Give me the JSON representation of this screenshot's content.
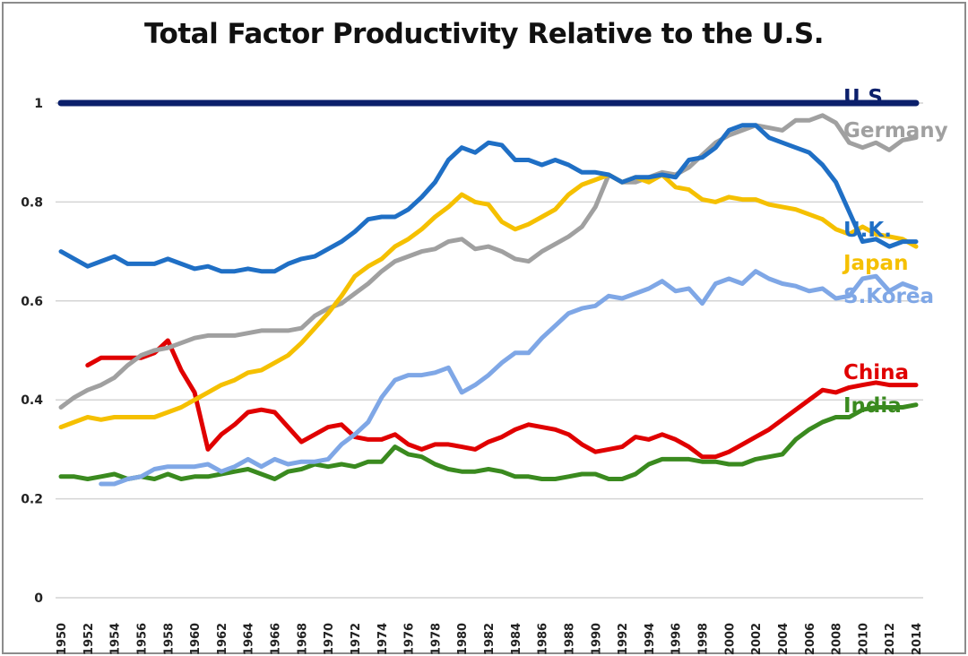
{
  "chart_data": {
    "type": "line",
    "title": "Total Factor Productivity Relative to the U.S.",
    "xlabel": "",
    "ylabel": "",
    "ylim": [
      0,
      1
    ],
    "xlim": [
      1950,
      2014
    ],
    "grid": true,
    "legend_position": "right (inline labels)",
    "y_ticks": [
      "0",
      "0.2",
      "0.4",
      "0.6",
      "0.8",
      "1"
    ],
    "y_tick_values": [
      0,
      0.2,
      0.4,
      0.6,
      0.8,
      1
    ],
    "x_tick_labels": [
      "1950",
      "1952",
      "1954",
      "1956",
      "1958",
      "1960",
      "1962",
      "1964",
      "1966",
      "1968",
      "1970",
      "1972",
      "1974",
      "1976",
      "1978",
      "1980",
      "1982",
      "1984",
      "1986",
      "1988",
      "1990",
      "1992",
      "1994",
      "1996",
      "1998",
      "2000",
      "2002",
      "2004",
      "2006",
      "2008",
      "2010",
      "2012",
      "2014"
    ],
    "x": [
      1950,
      1951,
      1952,
      1953,
      1954,
      1955,
      1956,
      1957,
      1958,
      1959,
      1960,
      1961,
      1962,
      1963,
      1964,
      1965,
      1966,
      1967,
      1968,
      1969,
      1970,
      1971,
      1972,
      1973,
      1974,
      1975,
      1976,
      1977,
      1978,
      1979,
      1980,
      1981,
      1982,
      1983,
      1984,
      1985,
      1986,
      1987,
      1988,
      1989,
      1990,
      1991,
      1992,
      1993,
      1994,
      1995,
      1996,
      1997,
      1998,
      1999,
      2000,
      2001,
      2002,
      2003,
      2004,
      2005,
      2006,
      2007,
      2008,
      2009,
      2010,
      2011,
      2012,
      2013,
      2014
    ],
    "series": [
      {
        "name": "U.S.",
        "color": "#0b1f6b",
        "values": [
          1,
          1,
          1,
          1,
          1,
          1,
          1,
          1,
          1,
          1,
          1,
          1,
          1,
          1,
          1,
          1,
          1,
          1,
          1,
          1,
          1,
          1,
          1,
          1,
          1,
          1,
          1,
          1,
          1,
          1,
          1,
          1,
          1,
          1,
          1,
          1,
          1,
          1,
          1,
          1,
          1,
          1,
          1,
          1,
          1,
          1,
          1,
          1,
          1,
          1,
          1,
          1,
          1,
          1,
          1,
          1,
          1,
          1,
          1,
          1,
          1,
          1,
          1,
          1,
          1
        ]
      },
      {
        "name": "Germany",
        "color": "#a0a0a0",
        "values": [
          0.385,
          0.405,
          0.42,
          0.43,
          0.445,
          0.47,
          0.49,
          0.5,
          0.505,
          0.515,
          0.525,
          0.53,
          0.53,
          0.53,
          0.535,
          0.54,
          0.54,
          0.54,
          0.545,
          0.57,
          0.585,
          0.595,
          0.615,
          0.635,
          0.66,
          0.68,
          0.69,
          0.7,
          0.705,
          0.72,
          0.725,
          0.705,
          0.71,
          0.7,
          0.685,
          0.68,
          0.7,
          0.715,
          0.73,
          0.75,
          0.79,
          0.855,
          0.84,
          0.84,
          0.85,
          0.86,
          0.855,
          0.87,
          0.895,
          0.92,
          0.935,
          0.945,
          0.955,
          0.95,
          0.945,
          0.965,
          0.965,
          0.975,
          0.96,
          0.92,
          0.91,
          0.92,
          0.905,
          0.925,
          0.93
        ]
      },
      {
        "name": "U.K.",
        "color": "#1f6fc5",
        "values": [
          0.7,
          0.685,
          0.67,
          0.68,
          0.69,
          0.675,
          0.675,
          0.675,
          0.685,
          0.675,
          0.665,
          0.67,
          0.66,
          0.66,
          0.665,
          0.66,
          0.66,
          0.675,
          0.685,
          0.69,
          0.705,
          0.72,
          0.74,
          0.765,
          0.77,
          0.77,
          0.785,
          0.81,
          0.84,
          0.885,
          0.91,
          0.9,
          0.92,
          0.915,
          0.885,
          0.885,
          0.875,
          0.885,
          0.875,
          0.86,
          0.86,
          0.855,
          0.84,
          0.85,
          0.85,
          0.855,
          0.85,
          0.885,
          0.89,
          0.91,
          0.945,
          0.955,
          0.955,
          0.93,
          0.92,
          0.91,
          0.9,
          0.875,
          0.84,
          0.78,
          0.72,
          0.725,
          0.71,
          0.72,
          0.72
        ]
      },
      {
        "name": "Japan",
        "color": "#f5c000",
        "values": [
          0.345,
          0.355,
          0.365,
          0.36,
          0.365,
          0.365,
          0.365,
          0.365,
          0.375,
          0.385,
          0.4,
          0.415,
          0.43,
          0.44,
          0.455,
          0.46,
          0.475,
          0.49,
          0.515,
          0.545,
          0.575,
          0.61,
          0.65,
          0.67,
          0.685,
          0.71,
          0.725,
          0.745,
          0.77,
          0.79,
          0.815,
          0.8,
          0.795,
          0.76,
          0.745,
          0.755,
          0.77,
          0.785,
          0.815,
          0.835,
          0.845,
          0.855,
          0.84,
          0.85,
          0.84,
          0.855,
          0.83,
          0.825,
          0.805,
          0.8,
          0.81,
          0.805,
          0.805,
          0.795,
          0.79,
          0.785,
          0.775,
          0.765,
          0.745,
          0.735,
          0.75,
          0.735,
          0.73,
          0.725,
          0.71
        ]
      },
      {
        "name": "S.Korea",
        "color": "#7fa7e6",
        "values": [
          null,
          null,
          null,
          0.23,
          0.23,
          0.24,
          0.245,
          0.26,
          0.265,
          0.265,
          0.265,
          0.27,
          0.255,
          0.265,
          0.28,
          0.265,
          0.28,
          0.27,
          0.275,
          0.275,
          0.28,
          0.31,
          0.33,
          0.355,
          0.405,
          0.44,
          0.45,
          0.45,
          0.455,
          0.465,
          0.415,
          0.43,
          0.45,
          0.475,
          0.495,
          0.495,
          0.525,
          0.55,
          0.575,
          0.585,
          0.59,
          0.61,
          0.605,
          0.615,
          0.625,
          0.64,
          0.62,
          0.625,
          0.595,
          0.635,
          0.645,
          0.635,
          0.66,
          0.645,
          0.635,
          0.63,
          0.62,
          0.625,
          0.605,
          0.61,
          0.645,
          0.65,
          0.62,
          0.635,
          0.625
        ]
      },
      {
        "name": "China",
        "color": "#e00000",
        "values": [
          null,
          null,
          0.47,
          0.485,
          0.485,
          0.485,
          0.485,
          0.495,
          0.52,
          0.46,
          0.415,
          0.3,
          0.33,
          0.35,
          0.375,
          0.38,
          0.375,
          0.345,
          0.315,
          0.33,
          0.345,
          0.35,
          0.325,
          0.32,
          0.32,
          0.33,
          0.31,
          0.3,
          0.31,
          0.31,
          0.305,
          0.3,
          0.315,
          0.325,
          0.34,
          0.35,
          0.345,
          0.34,
          0.33,
          0.31,
          0.295,
          0.3,
          0.305,
          0.325,
          0.32,
          0.33,
          0.32,
          0.305,
          0.285,
          0.285,
          0.295,
          0.31,
          0.325,
          0.34,
          0.36,
          0.38,
          0.4,
          0.42,
          0.415,
          0.425,
          0.43,
          0.435,
          0.43,
          0.43,
          0.43
        ]
      },
      {
        "name": "India",
        "color": "#3a8a1f",
        "values": [
          0.245,
          0.245,
          0.24,
          0.245,
          0.25,
          0.24,
          0.245,
          0.24,
          0.25,
          0.24,
          0.245,
          0.245,
          0.25,
          0.255,
          0.26,
          0.25,
          0.24,
          0.255,
          0.26,
          0.27,
          0.265,
          0.27,
          0.265,
          0.275,
          0.275,
          0.305,
          0.29,
          0.285,
          0.27,
          0.26,
          0.255,
          0.255,
          0.26,
          0.255,
          0.245,
          0.245,
          0.24,
          0.24,
          0.245,
          0.25,
          0.25,
          0.24,
          0.24,
          0.25,
          0.27,
          0.28,
          0.28,
          0.28,
          0.275,
          0.275,
          0.27,
          0.27,
          0.28,
          0.285,
          0.29,
          0.32,
          0.34,
          0.355,
          0.365,
          0.365,
          0.38,
          0.385,
          0.385,
          0.385,
          0.39
        ]
      }
    ]
  }
}
